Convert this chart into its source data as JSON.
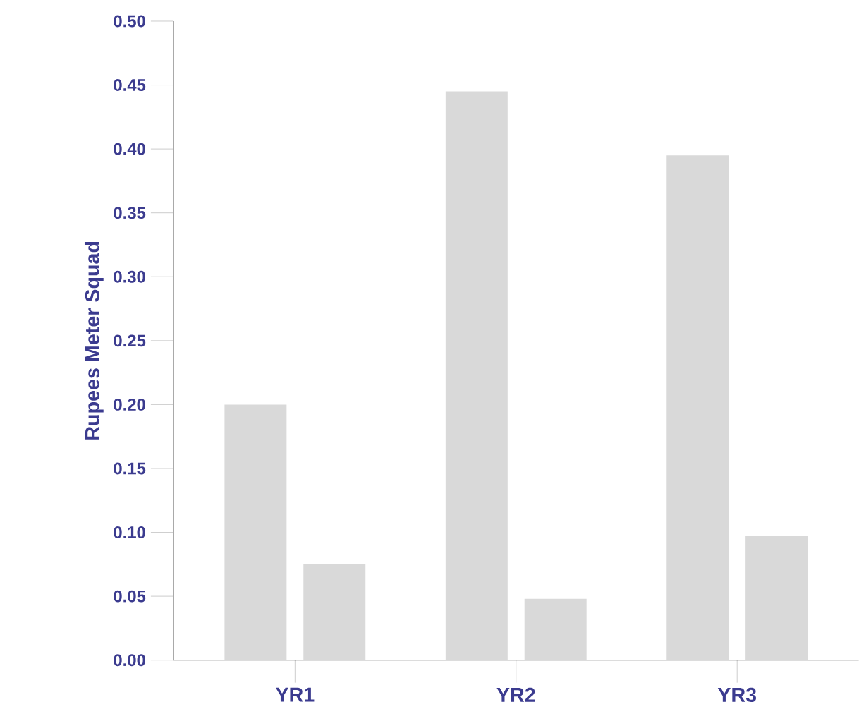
{
  "chart_data": {
    "type": "bar",
    "ylabel": "Rupees Meter Squad",
    "categories": [
      "YR1",
      "YR2",
      "YR3"
    ],
    "series": [
      {
        "color": "#d9d9d9",
        "values": [
          0.2,
          0.445,
          0.395
        ]
      },
      {
        "color": "#d9d9d9",
        "values": [
          0.075,
          0.048,
          0.097
        ]
      }
    ],
    "ylim": [
      0,
      0.5
    ],
    "yticks": [
      {
        "value": 0,
        "label": "0.00"
      },
      {
        "value": 0.05,
        "label": "0.05"
      },
      {
        "value": 0.1,
        "label": "0.10"
      },
      {
        "value": 0.15,
        "label": "0.15"
      },
      {
        "value": 0.2,
        "label": "0.20"
      },
      {
        "value": 0.25,
        "label": "0.25"
      },
      {
        "value": 0.3,
        "label": "0.30"
      },
      {
        "value": 0.35,
        "label": "0.35"
      },
      {
        "value": 0.4,
        "label": "0.40"
      },
      {
        "value": 0.45,
        "label": "0.45"
      },
      {
        "value": 0.5,
        "label": "0.50"
      }
    ],
    "grid": false
  }
}
